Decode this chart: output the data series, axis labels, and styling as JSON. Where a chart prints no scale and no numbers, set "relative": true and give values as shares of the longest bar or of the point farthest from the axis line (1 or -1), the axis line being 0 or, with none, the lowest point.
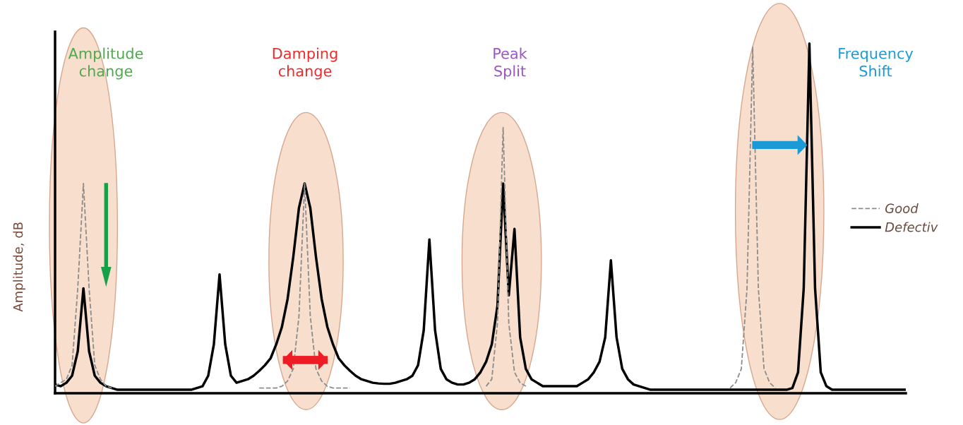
{
  "chart_data": {
    "type": "line",
    "relative": true,
    "ylabel": "Amplitude, dB",
    "categories": [
      null,
      null,
      null,
      null,
      null,
      null,
      null,
      null,
      null,
      null,
      null,
      null,
      null,
      null,
      null,
      null,
      null,
      null,
      null,
      null,
      null,
      null,
      null,
      null,
      null,
      null,
      null,
      null,
      null,
      null,
      null,
      null,
      null,
      null,
      null,
      null,
      null,
      null,
      null,
      null,
      null,
      null,
      null,
      null,
      null,
      null,
      null,
      null,
      null,
      null,
      null,
      null,
      null,
      null,
      null,
      null,
      null,
      null,
      null,
      null,
      null,
      null,
      null,
      null,
      null,
      null,
      null,
      null,
      null,
      null,
      null,
      null,
      null,
      null,
      null,
      null,
      null,
      null,
      null,
      null,
      null,
      null,
      null,
      null,
      null,
      null,
      null,
      null,
      null,
      null,
      null,
      null,
      null,
      null,
      null,
      null,
      null,
      null,
      null,
      null,
      null,
      null,
      null,
      null,
      null,
      null,
      null,
      null,
      null,
      null,
      null,
      null,
      null,
      null,
      null,
      null,
      null,
      null,
      null,
      null,
      null,
      null,
      null,
      null,
      null,
      null,
      null,
      null,
      null,
      null,
      null,
      null,
      null,
      null,
      null,
      null,
      null,
      null,
      null,
      null,
      null,
      null,
      null,
      null,
      null,
      null,
      null,
      null,
      null,
      null,
      null
    ],
    "series": [
      {
        "name": "Good",
        "color": "#8c8c8c",
        "line_style": "dashed",
        "values": [
          0.02,
          0.03,
          0.04,
          0.08,
          0.3,
          0.6,
          0.3,
          0.08,
          0.04,
          0.02,
          0.015,
          null,
          null,
          null,
          null,
          null,
          null,
          null,
          null,
          null,
          null,
          null,
          null,
          null,
          null,
          null,
          null,
          null,
          null,
          null,
          null,
          null,
          null,
          null,
          null,
          null,
          0.015,
          0.015,
          0.015,
          0.015,
          0.02,
          0.035,
          0.07,
          0.22,
          0.6,
          0.22,
          0.07,
          0.035,
          0.02,
          0.015,
          0.015,
          0.015,
          0.015,
          null,
          null,
          null,
          null,
          null,
          null,
          null,
          null,
          null,
          null,
          null,
          null,
          null,
          null,
          null,
          null,
          null,
          null,
          null,
          null,
          null,
          null,
          null,
          0.02,
          0.04,
          0.2,
          0.76,
          0.2,
          0.06,
          0.03,
          0.02,
          null,
          null,
          null,
          null,
          null,
          null,
          null,
          null,
          null,
          null,
          null,
          null,
          null,
          null,
          null,
          null,
          null,
          null,
          null,
          null,
          null,
          null,
          null,
          null,
          null,
          null,
          null,
          null,
          null,
          null,
          null,
          null,
          null,
          null,
          null,
          0.015,
          0.03,
          0.07,
          0.3,
          0.99,
          0.3,
          0.07,
          0.03,
          0.015,
          null,
          null,
          null,
          null,
          null,
          null,
          null,
          null,
          null,
          null,
          null,
          null,
          null,
          null,
          null,
          null,
          null,
          null,
          null,
          null,
          null,
          null,
          null
        ]
      },
      {
        "name": "Defectiv",
        "color": "#000000",
        "line_style": "solid",
        "values": [
          0.025,
          0.02,
          0.03,
          0.05,
          0.12,
          0.3,
          0.12,
          0.05,
          0.03,
          0.02,
          0.015,
          0.01,
          0.01,
          0.01,
          0.01,
          0.01,
          0.01,
          0.01,
          0.01,
          0.01,
          0.01,
          0.01,
          0.01,
          0.01,
          0.01,
          0.015,
          0.02,
          0.05,
          0.14,
          0.34,
          0.14,
          0.05,
          0.03,
          0.035,
          0.04,
          0.05,
          0.064,
          0.08,
          0.1,
          0.14,
          0.19,
          0.27,
          0.39,
          0.53,
          0.6,
          0.53,
          0.39,
          0.27,
          0.19,
          0.14,
          0.1,
          0.08,
          0.064,
          0.05,
          0.04,
          0.035,
          0.03,
          0.028,
          0.027,
          0.027,
          0.03,
          0.035,
          0.04,
          0.05,
          0.08,
          0.18,
          0.44,
          0.18,
          0.07,
          0.04,
          0.03,
          0.025,
          0.025,
          0.03,
          0.04,
          0.06,
          0.09,
          0.14,
          0.25,
          0.6,
          0.28,
          0.47,
          0.16,
          0.07,
          0.04,
          0.03,
          0.02,
          0.02,
          0.02,
          0.02,
          0.02,
          0.02,
          0.02,
          0.03,
          0.04,
          0.06,
          0.09,
          0.16,
          0.38,
          0.16,
          0.07,
          0.04,
          0.025,
          0.02,
          0.015,
          0.01,
          0.01,
          0.01,
          0.01,
          0.01,
          0.01,
          0.01,
          0.01,
          0.01,
          0.01,
          0.01,
          0.01,
          0.01,
          0.01,
          0.01,
          0.01,
          0.01,
          0.01,
          0.01,
          0.01,
          0.01,
          0.01,
          0.01,
          0.01,
          0.01,
          0.015,
          0.06,
          0.3,
          1.0,
          0.3,
          0.06,
          0.02,
          0.01,
          0.01,
          0.01,
          0.01,
          0.01,
          0.01,
          0.01,
          0.01,
          0.01,
          0.01,
          0.01,
          0.01,
          0.01,
          0.01
        ]
      }
    ],
    "annotations": [
      "Amplitude change",
      "Damping change",
      "Peak Split",
      "Frequency Shift"
    ],
    "legend": "right",
    "grid": false
  }
}
